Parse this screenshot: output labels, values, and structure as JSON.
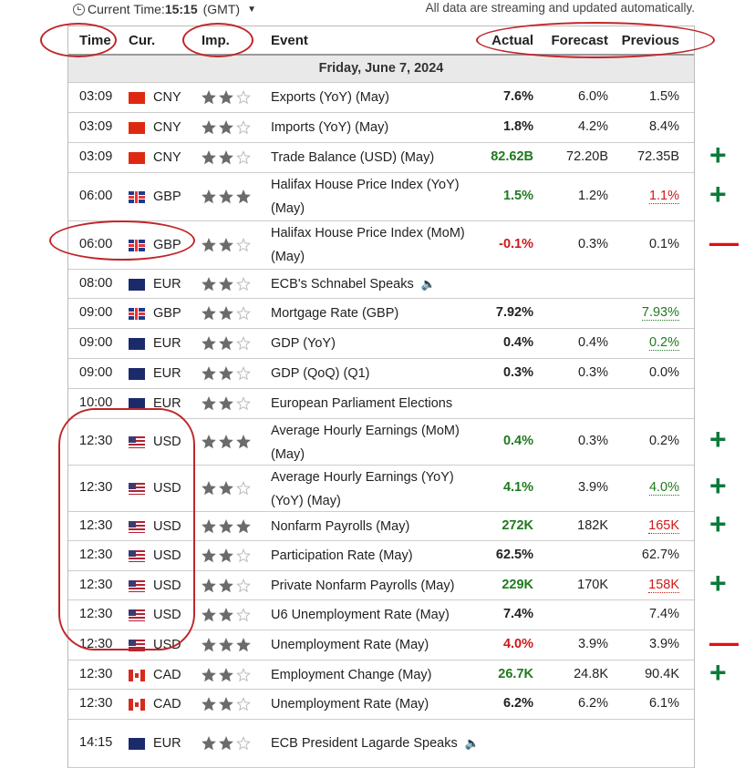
{
  "topbar": {
    "current_time_label": "Current Time:",
    "current_time": "15:15",
    "timezone": "(GMT)",
    "streaming_note": "All data are streaming and updated automatically."
  },
  "columns": {
    "time": "Time",
    "cur": "Cur.",
    "imp": "Imp.",
    "event": "Event",
    "actual": "Actual",
    "forecast": "Forecast",
    "previous": "Previous"
  },
  "day_header": "Friday, June 7, 2024",
  "colors": {
    "positive": "#1f7a1f",
    "negative": "#d01818",
    "annotation": "#c0262a",
    "plus_mark": "#0b7a3b",
    "minus_mark": "#e01010"
  },
  "rows": [
    {
      "time": "03:09",
      "flag": "cn",
      "cur": "CNY",
      "imp": 2,
      "event": "Exports (YoY) (May)",
      "actual": "7.6%",
      "actual_style": "",
      "forecast": "6.0%",
      "previous": "1.5%",
      "previous_style": "",
      "mark": ""
    },
    {
      "time": "03:09",
      "flag": "cn",
      "cur": "CNY",
      "imp": 2,
      "event": "Imports (YoY) (May)",
      "actual": "1.8%",
      "actual_style": "",
      "forecast": "4.2%",
      "previous": "8.4%",
      "previous_style": "",
      "mark": ""
    },
    {
      "time": "03:09",
      "flag": "cn",
      "cur": "CNY",
      "imp": 2,
      "event": "Trade Balance (USD) (May)",
      "actual": "82.62B",
      "actual_style": "green",
      "forecast": "72.20B",
      "previous": "72.35B",
      "previous_style": "",
      "mark": "+"
    },
    {
      "time": "06:00",
      "flag": "gb",
      "cur": "GBP",
      "imp": 3,
      "event": "Halifax House Price Index (YoY) (May)",
      "actual": "1.5%",
      "actual_style": "green",
      "forecast": "1.2%",
      "previous": "1.1%",
      "previous_style": "under-red",
      "mark": "+"
    },
    {
      "time": "06:00",
      "flag": "gb",
      "cur": "GBP",
      "imp": 2,
      "event": "Halifax House Price Index (MoM) (May)",
      "actual": "-0.1%",
      "actual_style": "red",
      "forecast": "0.3%",
      "previous": "0.1%",
      "previous_style": "",
      "mark": "-"
    },
    {
      "time": "08:00",
      "flag": "eu",
      "cur": "EUR",
      "imp": 2,
      "event": "ECB's Schnabel Speaks",
      "speaker": true,
      "actual": "",
      "actual_style": "",
      "forecast": "",
      "previous": "",
      "previous_style": "",
      "mark": ""
    },
    {
      "time": "09:00",
      "flag": "gb",
      "cur": "GBP",
      "imp": 2,
      "event": "Mortgage Rate (GBP)",
      "actual": "7.92%",
      "actual_style": "",
      "forecast": "",
      "previous": "7.93%",
      "previous_style": "under-green",
      "mark": ""
    },
    {
      "time": "09:00",
      "flag": "eu",
      "cur": "EUR",
      "imp": 2,
      "event": "GDP (YoY)",
      "actual": "0.4%",
      "actual_style": "",
      "forecast": "0.4%",
      "previous": "0.2%",
      "previous_style": "under-green",
      "mark": ""
    },
    {
      "time": "09:00",
      "flag": "eu",
      "cur": "EUR",
      "imp": 2,
      "event": "GDP (QoQ) (Q1)",
      "actual": "0.3%",
      "actual_style": "",
      "forecast": "0.3%",
      "previous": "0.0%",
      "previous_style": "",
      "mark": ""
    },
    {
      "time": "10:00",
      "flag": "eu",
      "cur": "EUR",
      "imp": 2,
      "event": "European Parliament Elections",
      "actual": "",
      "actual_style": "",
      "forecast": "",
      "previous": "",
      "previous_style": "",
      "mark": ""
    },
    {
      "time": "12:30",
      "flag": "us",
      "cur": "USD",
      "imp": 3,
      "event": "Average Hourly Earnings (MoM) (May)",
      "actual": "0.4%",
      "actual_style": "green",
      "forecast": "0.3%",
      "previous": "0.2%",
      "previous_style": "",
      "mark": "+"
    },
    {
      "time": "12:30",
      "flag": "us",
      "cur": "USD",
      "imp": 2,
      "event": "Average Hourly Earnings (YoY) (YoY) (May)",
      "actual": "4.1%",
      "actual_style": "green",
      "forecast": "3.9%",
      "previous": "4.0%",
      "previous_style": "under-green",
      "mark": "+"
    },
    {
      "time": "12:30",
      "flag": "us",
      "cur": "USD",
      "imp": 3,
      "event": "Nonfarm Payrolls (May)",
      "actual": "272K",
      "actual_style": "green",
      "forecast": "182K",
      "previous": "165K",
      "previous_style": "under-red",
      "mark": "+"
    },
    {
      "time": "12:30",
      "flag": "us",
      "cur": "USD",
      "imp": 2,
      "event": "Participation Rate (May)",
      "actual": "62.5%",
      "actual_style": "",
      "forecast": "",
      "previous": "62.7%",
      "previous_style": "",
      "mark": ""
    },
    {
      "time": "12:30",
      "flag": "us",
      "cur": "USD",
      "imp": 2,
      "event": "Private Nonfarm Payrolls (May)",
      "actual": "229K",
      "actual_style": "green",
      "forecast": "170K",
      "previous": "158K",
      "previous_style": "under-red",
      "mark": "+"
    },
    {
      "time": "12:30",
      "flag": "us",
      "cur": "USD",
      "imp": 2,
      "event": "U6 Unemployment Rate (May)",
      "actual": "7.4%",
      "actual_style": "",
      "forecast": "",
      "previous": "7.4%",
      "previous_style": "",
      "mark": ""
    },
    {
      "time": "12:30",
      "flag": "us",
      "cur": "USD",
      "imp": 3,
      "event": "Unemployment Rate (May)",
      "actual": "4.0%",
      "actual_style": "red",
      "forecast": "3.9%",
      "previous": "3.9%",
      "previous_style": "",
      "mark": "-"
    },
    {
      "time": "12:30",
      "flag": "ca",
      "cur": "CAD",
      "imp": 2,
      "event": "Employment Change (May)",
      "actual": "26.7K",
      "actual_style": "green",
      "forecast": "24.8K",
      "previous": "90.4K",
      "previous_style": "",
      "mark": "+"
    },
    {
      "time": "12:30",
      "flag": "ca",
      "cur": "CAD",
      "imp": 2,
      "event": "Unemployment Rate (May)",
      "actual": "6.2%",
      "actual_style": "",
      "forecast": "6.2%",
      "previous": "6.1%",
      "previous_style": "",
      "mark": ""
    },
    {
      "time": "14:15",
      "flag": "eu",
      "cur": "EUR",
      "imp": 2,
      "event": "ECB President Lagarde Speaks",
      "speaker": true,
      "actual": "",
      "actual_style": "",
      "forecast": "",
      "previous": "",
      "previous_style": "",
      "mark": ""
    }
  ]
}
